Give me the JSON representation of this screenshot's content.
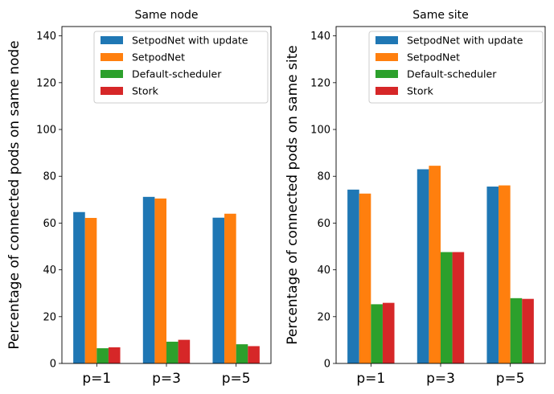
{
  "chart_data": [
    {
      "type": "bar",
      "title": "Same node",
      "ylabel": "Percentage of connected pods on same node",
      "xlabel": "",
      "categories": [
        "p=1",
        "p=3",
        "p=5"
      ],
      "ylim": [
        0,
        144
      ],
      "yticks": [
        "0",
        "20",
        "40",
        "60",
        "80",
        "100",
        "120",
        "140"
      ],
      "legend_position": "top-right",
      "series": [
        {
          "name": "SetpodNet with update",
          "color": "#1f77b4",
          "values": [
            64.7,
            71.2,
            62.3
          ]
        },
        {
          "name": "SetpodNet",
          "color": "#ff7f0e",
          "values": [
            62.2,
            70.5,
            64.0
          ]
        },
        {
          "name": "Default-scheduler",
          "color": "#2ca02c",
          "values": [
            6.5,
            9.3,
            8.2
          ]
        },
        {
          "name": "Stork",
          "color": "#d62728",
          "values": [
            6.9,
            10.1,
            7.4
          ]
        }
      ]
    },
    {
      "type": "bar",
      "title": "Same site",
      "ylabel": "Percentage of connected pods on same site",
      "xlabel": "",
      "categories": [
        "p=1",
        "p=3",
        "p=5"
      ],
      "ylim": [
        0,
        144
      ],
      "yticks": [
        "0",
        "20",
        "40",
        "60",
        "80",
        "100",
        "120",
        "140"
      ],
      "legend_position": "top-right",
      "series": [
        {
          "name": "SetpodNet with update",
          "color": "#1f77b4",
          "values": [
            74.3,
            83.0,
            75.6
          ]
        },
        {
          "name": "SetpodNet",
          "color": "#ff7f0e",
          "values": [
            72.6,
            84.5,
            76.1
          ]
        },
        {
          "name": "Default-scheduler",
          "color": "#2ca02c",
          "values": [
            25.3,
            47.6,
            27.9
          ]
        },
        {
          "name": "Stork",
          "color": "#d62728",
          "values": [
            25.9,
            47.6,
            27.6
          ]
        }
      ]
    }
  ]
}
